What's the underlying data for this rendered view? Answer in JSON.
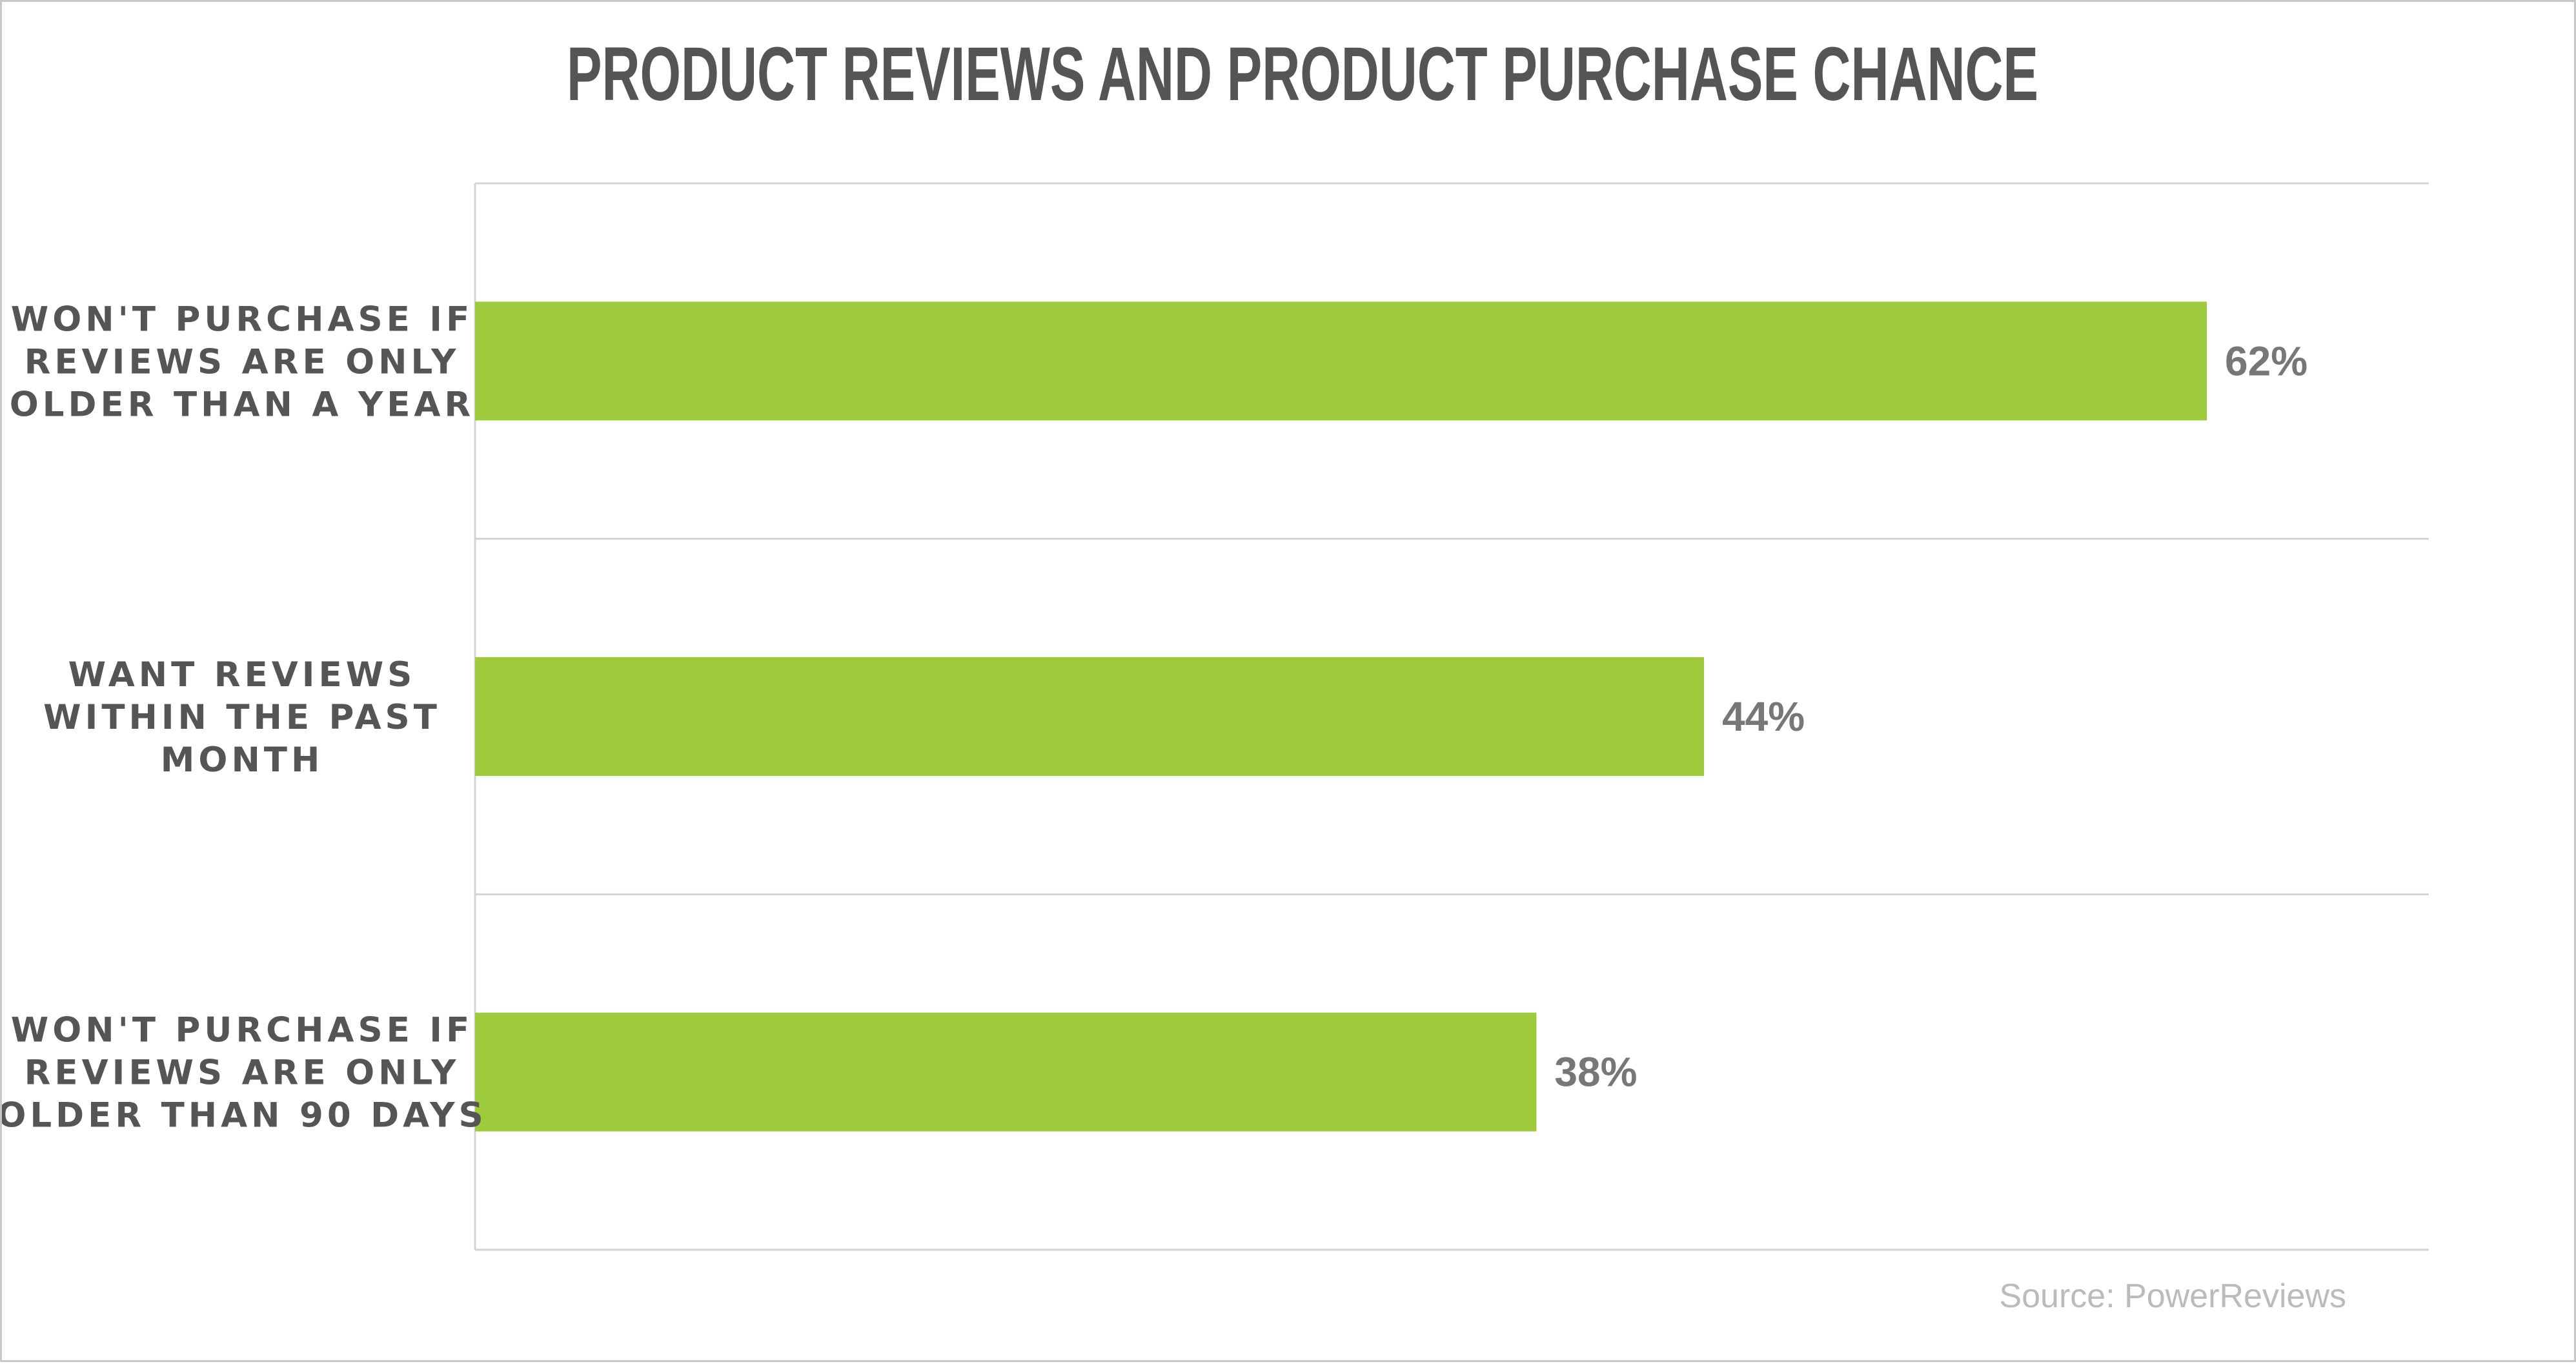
{
  "chart_data": {
    "type": "bar",
    "orientation": "horizontal",
    "title": "PRODUCT REVIEWS AND PRODUCT PURCHASE CHANCE",
    "categories": [
      [
        "WON'T PURCHASE IF",
        "REVIEWS ARE ONLY",
        "OLDER THAN A YEAR"
      ],
      [
        "WANT REVIEWS",
        "WITHIN THE PAST",
        "MONTH"
      ],
      [
        "WON'T PURCHASE IF",
        "REVIEWS ARE ONLY",
        "OLDER THAN 90 DAYS"
      ]
    ],
    "values": [
      62,
      44,
      38
    ],
    "value_labels": [
      "62%",
      "44%",
      "38%"
    ],
    "xlim": [
      0,
      70
    ],
    "grid": true,
    "bar_color": "#9ecb3b",
    "source": "Source: PowerReviews"
  }
}
